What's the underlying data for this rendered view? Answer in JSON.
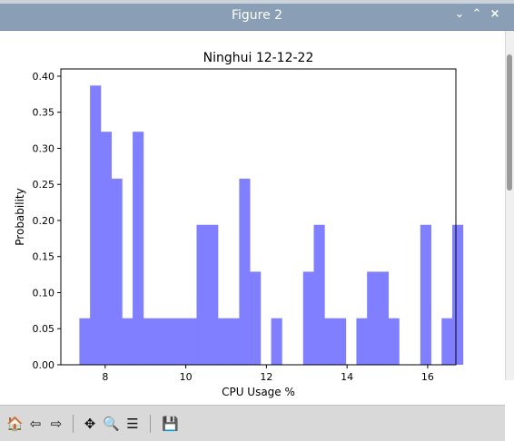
{
  "window": {
    "title": "Figure 2",
    "min_glyph": "⌄",
    "max_glyph": "⌃",
    "close_glyph": "×"
  },
  "toolbar": {
    "items": [
      {
        "name": "home-icon",
        "glyph": "🏠"
      },
      {
        "name": "back-arrow-icon",
        "glyph": "⇦"
      },
      {
        "name": "forward-arrow-icon",
        "glyph": "⇨"
      },
      {
        "name": "pan-icon",
        "glyph": "✥"
      },
      {
        "name": "zoom-icon",
        "glyph": "🔍"
      },
      {
        "name": "configure-subplots-icon",
        "glyph": "☰"
      },
      {
        "name": "save-icon",
        "glyph": "💾"
      }
    ]
  },
  "chart_data": {
    "type": "bar",
    "title": "Ninghui 12-12-22",
    "xlabel": "CPU Usage %",
    "ylabel": "Probability",
    "xlim": [
      6.9,
      16.7
    ],
    "ylim": [
      0,
      0.41
    ],
    "xticks": [
      8,
      10,
      12,
      14,
      16
    ],
    "yticks": [
      0.0,
      0.05,
      0.1,
      0.15,
      0.2,
      0.25,
      0.3,
      0.35,
      0.4
    ],
    "ytick_labels": [
      "0.00",
      "0.05",
      "0.10",
      "0.15",
      "0.20",
      "0.25",
      "0.30",
      "0.35",
      "0.40"
    ],
    "bar_color": "#7f7fff",
    "bin_start": 7.36,
    "bin_width": 0.2643,
    "values": [
      0.0645,
      0.387,
      0.323,
      0.258,
      0.0645,
      0.323,
      0.0645,
      0.0645,
      0.0645,
      0.0645,
      0.0645,
      0.194,
      0.194,
      0.0645,
      0.0645,
      0.258,
      0.129,
      0,
      0.0645,
      0,
      0,
      0.129,
      0.194,
      0.0645,
      0.0645,
      0,
      0.0645,
      0.129,
      0.129,
      0.0645,
      0,
      0,
      0.194,
      0,
      0.0645,
      0.194
    ]
  }
}
